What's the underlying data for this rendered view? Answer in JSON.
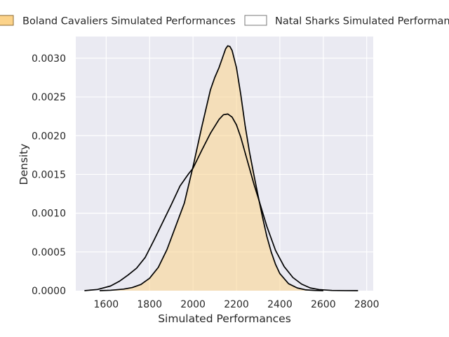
{
  "chart_data": {
    "type": "area",
    "title": "",
    "xlabel": "Simulated Performances",
    "ylabel": "Density",
    "xlim": [
      1460,
      2830
    ],
    "ylim": [
      0,
      0.00328
    ],
    "x_ticks": [
      1600,
      1800,
      2000,
      2200,
      2400,
      2600,
      2800
    ],
    "x_tick_labels": [
      "1600",
      "1800",
      "2000",
      "2200",
      "2400",
      "2600",
      "2800"
    ],
    "y_ticks": [
      0,
      0.0005,
      0.001,
      0.0015,
      0.002,
      0.0025,
      0.003
    ],
    "y_tick_labels": [
      "0.0000",
      "0.0005",
      "0.0010",
      "0.0015",
      "0.0020",
      "0.0025",
      "0.0030"
    ],
    "grid": true,
    "legend_position": "top",
    "series": [
      {
        "name": "Boland Cavaliers Simulated Performances",
        "fill": "#fcd38a",
        "fill_opacity": 0.55,
        "edge": "#000000",
        "x": [
          1570,
          1620,
          1680,
          1720,
          1760,
          1800,
          1840,
          1880,
          1920,
          1960,
          2000,
          2040,
          2080,
          2100,
          2120,
          2140,
          2150,
          2160,
          2170,
          2180,
          2200,
          2220,
          2240,
          2260,
          2280,
          2300,
          2320,
          2340,
          2360,
          2380,
          2400,
          2440,
          2480,
          2520,
          2560,
          2600
        ],
        "y": [
          0,
          5e-06,
          2e-05,
          4e-05,
          8e-05,
          0.00016,
          0.0003,
          0.00053,
          0.00083,
          0.00113,
          0.0016,
          0.00211,
          0.00259,
          0.00275,
          0.00288,
          0.00304,
          0.00312,
          0.00316,
          0.00315,
          0.0031,
          0.00288,
          0.00253,
          0.00213,
          0.00179,
          0.0015,
          0.00122,
          0.00095,
          0.0007,
          0.0005,
          0.00034,
          0.00022,
          9e-05,
          3.5e-05,
          1e-05,
          3e-06,
          0
        ]
      },
      {
        "name": "Natal Sharks Simulated Performances",
        "fill": "none",
        "edge": "#000000",
        "x": [
          1500,
          1560,
          1620,
          1660,
          1700,
          1740,
          1780,
          1820,
          1860,
          1900,
          1940,
          1980,
          2000,
          2040,
          2080,
          2120,
          2140,
          2160,
          2180,
          2200,
          2220,
          2240,
          2260,
          2280,
          2300,
          2340,
          2380,
          2420,
          2460,
          2500,
          2540,
          2580,
          2640,
          2700,
          2760
        ],
        "y": [
          0,
          1.5e-05,
          6e-05,
          0.00012,
          0.0002,
          0.00029,
          0.00043,
          0.00065,
          0.00088,
          0.00111,
          0.00135,
          0.00151,
          0.00158,
          0.00181,
          0.00203,
          0.00221,
          0.00227,
          0.00228,
          0.00224,
          0.00214,
          0.00198,
          0.00178,
          0.00158,
          0.00138,
          0.0012,
          0.00083,
          0.00052,
          0.00031,
          0.00017,
          8.5e-05,
          3.5e-05,
          1.4e-05,
          3e-06,
          5e-07,
          0
        ]
      }
    ]
  }
}
